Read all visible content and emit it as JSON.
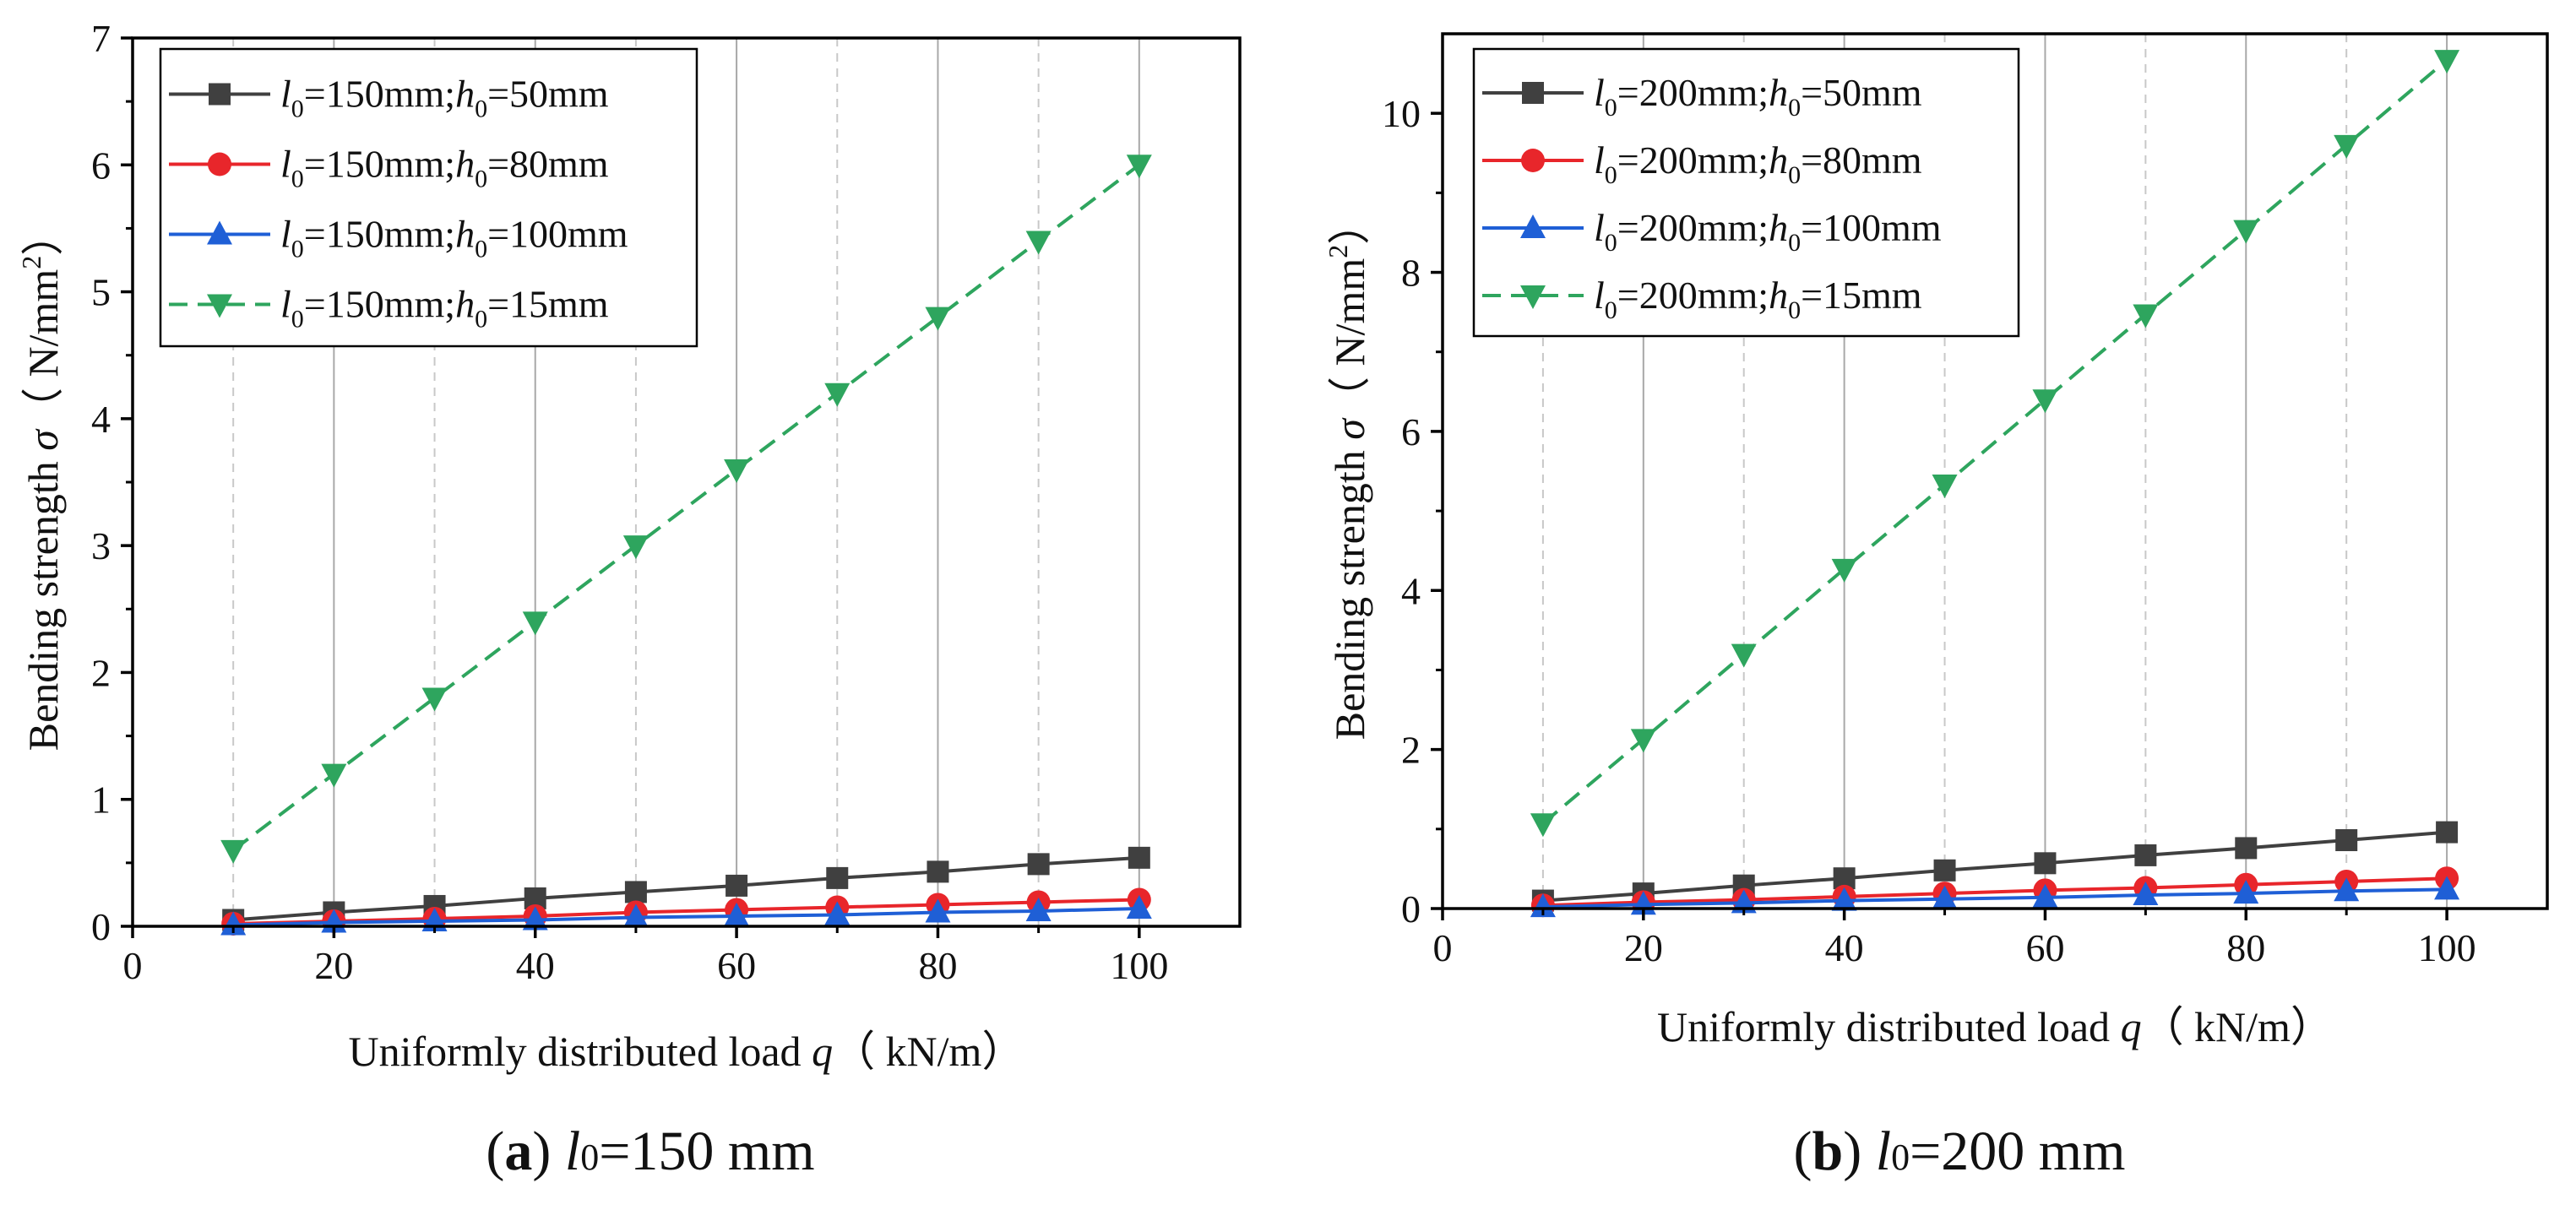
{
  "chart_data": [
    {
      "panel_id": "a",
      "type": "line",
      "caption": {
        "letter": "a",
        "var": "l",
        "sub": "0",
        "text": "=150 mm"
      },
      "xlabel": {
        "text": "Uniformly distributed load ",
        "var": "q",
        "unit": "（ kN/m）"
      },
      "ylabel": {
        "text": "Bending strength ",
        "var": "σ",
        "unit": "（ N/mm",
        "sup": "2",
        "close": "）"
      },
      "xlim": [
        0,
        110
      ],
      "ylim": [
        0,
        7
      ],
      "xticks": [
        0,
        20,
        40,
        60,
        80,
        100
      ],
      "yticks": [
        0,
        1,
        2,
        3,
        4,
        5,
        6,
        7
      ],
      "grid_major_x": [
        20,
        40,
        60,
        80,
        100
      ],
      "grid_minor_x": [
        10,
        30,
        50,
        70,
        90
      ],
      "x": [
        10,
        20,
        30,
        40,
        50,
        60,
        70,
        80,
        90,
        100
      ],
      "legend_position": "top-left",
      "series": [
        {
          "name": "l0=150mm;h0=50mm",
          "l0": "150mm",
          "h0": "50mm",
          "marker": "square",
          "dash": "solid",
          "color": "#404040",
          "values": [
            0.05,
            0.11,
            0.16,
            0.22,
            0.27,
            0.32,
            0.38,
            0.43,
            0.49,
            0.54
          ]
        },
        {
          "name": "l0=150mm;h0=80mm",
          "l0": "150mm",
          "h0": "80mm",
          "marker": "circle",
          "dash": "solid",
          "color": "#e8262b",
          "values": [
            0.02,
            0.04,
            0.06,
            0.08,
            0.11,
            0.13,
            0.15,
            0.17,
            0.19,
            0.21
          ]
        },
        {
          "name": "l0=150mm;h0=100mm",
          "l0": "150mm",
          "h0": "100mm",
          "marker": "triangle-up",
          "dash": "solid",
          "color": "#1f5fd6",
          "values": [
            0.01,
            0.03,
            0.04,
            0.05,
            0.07,
            0.08,
            0.09,
            0.11,
            0.12,
            0.14
          ]
        },
        {
          "name": "l0=150mm;h0=15mm",
          "l0": "150mm",
          "h0": "15mm",
          "marker": "triangle-down",
          "dash": "dashed",
          "color": "#2ea55e",
          "values": [
            0.6,
            1.2,
            1.8,
            2.4,
            3.0,
            3.6,
            4.2,
            4.8,
            5.4,
            6.0
          ]
        }
      ]
    },
    {
      "panel_id": "b",
      "type": "line",
      "caption": {
        "letter": "b",
        "var": "l",
        "sub": "0",
        "text": "=200 mm"
      },
      "xlabel": {
        "text": "Uniformly distributed load ",
        "var": "q",
        "unit": "（ kN/m）"
      },
      "ylabel": {
        "text": "Bending strength ",
        "var": "σ",
        "unit": "（ N/mm",
        "sup": "2",
        "close": "）"
      },
      "xlim": [
        0,
        110
      ],
      "ylim": [
        0,
        11
      ],
      "xticks": [
        0,
        20,
        40,
        60,
        80,
        100
      ],
      "yticks": [
        0,
        2,
        4,
        6,
        8,
        10
      ],
      "grid_major_x": [
        20,
        40,
        60,
        80,
        100
      ],
      "grid_minor_x": [
        10,
        30,
        50,
        70,
        90
      ],
      "x": [
        10,
        20,
        30,
        40,
        50,
        60,
        70,
        80,
        90,
        100
      ],
      "legend_position": "top-left",
      "series": [
        {
          "name": "l0=200mm;h0=50mm",
          "l0": "200mm",
          "h0": "50mm",
          "marker": "square",
          "dash": "solid",
          "color": "#404040",
          "values": [
            0.1,
            0.19,
            0.29,
            0.38,
            0.48,
            0.57,
            0.67,
            0.76,
            0.86,
            0.96
          ]
        },
        {
          "name": "l0=200mm;h0=80mm",
          "l0": "200mm",
          "h0": "80mm",
          "marker": "circle",
          "dash": "solid",
          "color": "#e8262b",
          "values": [
            0.04,
            0.08,
            0.11,
            0.15,
            0.19,
            0.23,
            0.26,
            0.3,
            0.34,
            0.38
          ]
        },
        {
          "name": "l0=200mm;h0=100mm",
          "l0": "200mm",
          "h0": "100mm",
          "marker": "triangle-up",
          "dash": "solid",
          "color": "#1f5fd6",
          "values": [
            0.02,
            0.05,
            0.07,
            0.1,
            0.12,
            0.14,
            0.17,
            0.19,
            0.22,
            0.24
          ]
        },
        {
          "name": "l0=200mm;h0=15mm",
          "l0": "200mm",
          "h0": "15mm",
          "marker": "triangle-down",
          "dash": "dashed",
          "color": "#2ea55e",
          "values": [
            1.07,
            2.13,
            3.2,
            4.27,
            5.33,
            6.4,
            7.47,
            8.53,
            9.6,
            10.67
          ]
        }
      ]
    }
  ]
}
